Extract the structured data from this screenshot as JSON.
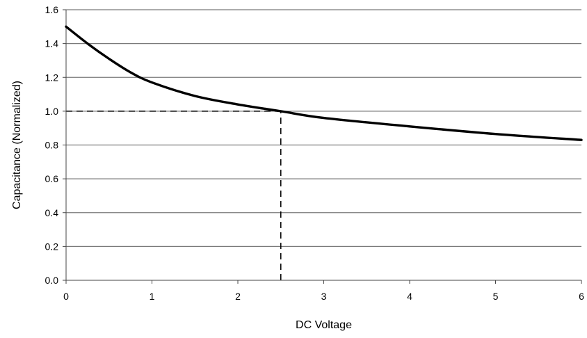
{
  "chart_data": {
    "type": "line",
    "title": "",
    "xlabel": "DC Voltage",
    "ylabel": "Capacitance (Normalized)",
    "xlim": [
      0,
      6
    ],
    "ylim": [
      0,
      1.6
    ],
    "x_ticks": [
      0,
      1,
      2,
      3,
      4,
      5,
      6
    ],
    "x_tick_labels": [
      "0",
      "1",
      "2",
      "3",
      "4",
      "5",
      "6"
    ],
    "y_ticks": [
      0,
      0.2,
      0.4,
      0.6,
      0.8,
      1.0,
      1.2,
      1.4,
      1.6
    ],
    "y_tick_labels": [
      "0.0",
      "0.2",
      "0.4",
      "0.6",
      "0.8",
      "1.0",
      "1.2",
      "1.4",
      "1.6"
    ],
    "grid": "horizontal",
    "legend": "none",
    "series": [
      {
        "x": [
          0,
          0.25,
          0.5,
          0.75,
          1.0,
          1.5,
          2.0,
          2.5,
          3.0,
          4.0,
          5.0,
          6.0
        ],
        "y": [
          1.5,
          1.4,
          1.31,
          1.23,
          1.17,
          1.09,
          1.04,
          1.0,
          0.96,
          0.91,
          0.865,
          0.83
        ],
        "color": "#000000"
      }
    ],
    "reference_lines": [
      {
        "type": "horizontal",
        "y": 1.0,
        "x_from": 0,
        "x_to": 2.5,
        "style": "dashed"
      },
      {
        "type": "vertical",
        "x": 2.5,
        "y_from": 0,
        "y_to": 1.0,
        "style": "dashed"
      }
    ]
  }
}
